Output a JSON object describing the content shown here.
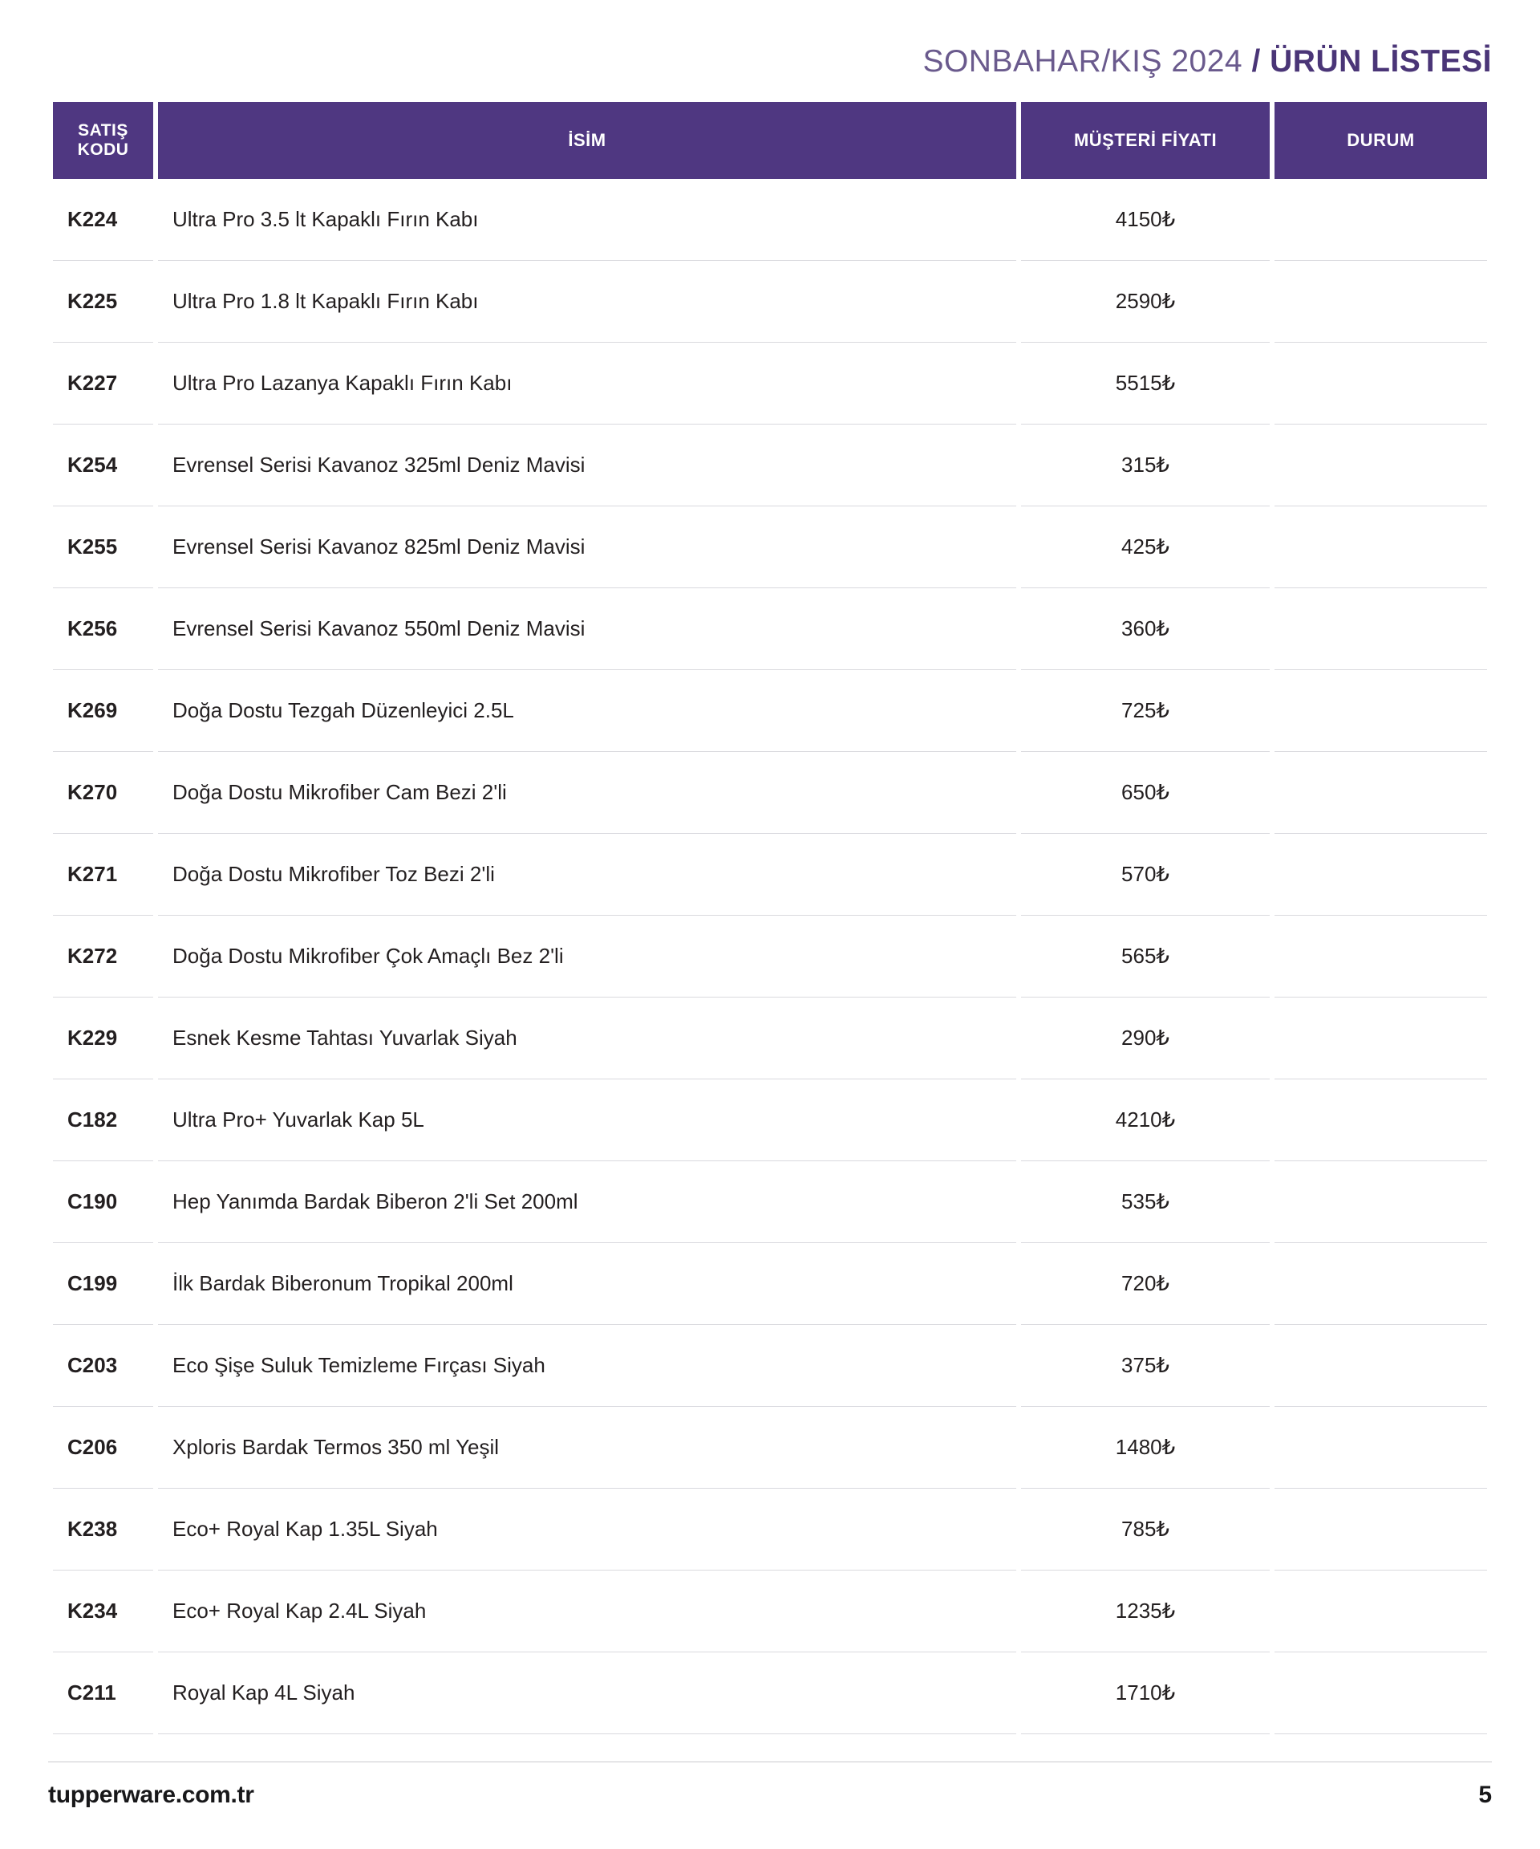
{
  "header": {
    "light": "SONBAHAR/KIŞ 2024 ",
    "slash": "/ ",
    "bold": "ÜRÜN LİSTESİ"
  },
  "columns": {
    "code_line1": "SATIŞ",
    "code_line2": "KODU",
    "name": "İSİM",
    "price": "MÜŞTERİ FİYATI",
    "status": "DURUM"
  },
  "rows": [
    {
      "code": "K224",
      "name": "Ultra Pro 3.5 lt Kapaklı Fırın Kabı",
      "price": "4150₺",
      "status": ""
    },
    {
      "code": "K225",
      "name": "Ultra Pro 1.8 lt Kapaklı Fırın Kabı",
      "price": "2590₺",
      "status": ""
    },
    {
      "code": "K227",
      "name": "Ultra Pro Lazanya Kapaklı Fırın Kabı",
      "price": "5515₺",
      "status": ""
    },
    {
      "code": "K254",
      "name": "Evrensel Serisi Kavanoz 325ml Deniz Mavisi",
      "price": "315₺",
      "status": ""
    },
    {
      "code": "K255",
      "name": "Evrensel Serisi Kavanoz 825ml Deniz Mavisi",
      "price": "425₺",
      "status": ""
    },
    {
      "code": "K256",
      "name": "Evrensel Serisi Kavanoz 550ml Deniz Mavisi",
      "price": "360₺",
      "status": ""
    },
    {
      "code": "K269",
      "name": "Doğa Dostu Tezgah Düzenleyici 2.5L",
      "price": "725₺",
      "status": ""
    },
    {
      "code": "K270",
      "name": "Doğa Dostu Mikrofiber Cam Bezi 2'li",
      "price": "650₺",
      "status": ""
    },
    {
      "code": "K271",
      "name": "Doğa Dostu Mikrofiber Toz Bezi 2'li",
      "price": "570₺",
      "status": ""
    },
    {
      "code": "K272",
      "name": "Doğa Dostu Mikrofiber Çok Amaçlı Bez 2'li",
      "price": "565₺",
      "status": ""
    },
    {
      "code": "K229",
      "name": "Esnek Kesme Tahtası Yuvarlak Siyah",
      "price": "290₺",
      "status": ""
    },
    {
      "code": "C182",
      "name": "Ultra Pro+ Yuvarlak Kap 5L",
      "price": "4210₺",
      "status": ""
    },
    {
      "code": "C190",
      "name": "Hep Yanımda Bardak Biberon 2'li Set 200ml",
      "price": "535₺",
      "status": ""
    },
    {
      "code": "C199",
      "name": "İlk Bardak Biberonum Tropikal 200ml",
      "price": "720₺",
      "status": ""
    },
    {
      "code": "C203",
      "name": "Eco Şişe Suluk Temizleme Fırçası Siyah",
      "price": "375₺",
      "status": ""
    },
    {
      "code": "C206",
      "name": "Xploris Bardak Termos 350 ml Yeşil",
      "price": "1480₺",
      "status": ""
    },
    {
      "code": "K238",
      "name": "Eco+ Royal Kap 1.35L Siyah",
      "price": "785₺",
      "status": ""
    },
    {
      "code": "K234",
      "name": "Eco+ Royal Kap 2.4L Siyah",
      "price": "1235₺",
      "status": ""
    },
    {
      "code": "C211",
      "name": "Royal Kap 4L Siyah",
      "price": "1710₺",
      "status": ""
    }
  ],
  "footer": {
    "domain": "tupperware.com.tr",
    "page": "5"
  },
  "style": {
    "header_bg": "#4f3781",
    "header_fg": "#ffffff",
    "border_color": "#d9d9de",
    "title_light_color": "#6a5a8d",
    "title_bold_color": "#4a3577",
    "text_color": "#231f20",
    "footer_rule": "#c9c9ce"
  }
}
